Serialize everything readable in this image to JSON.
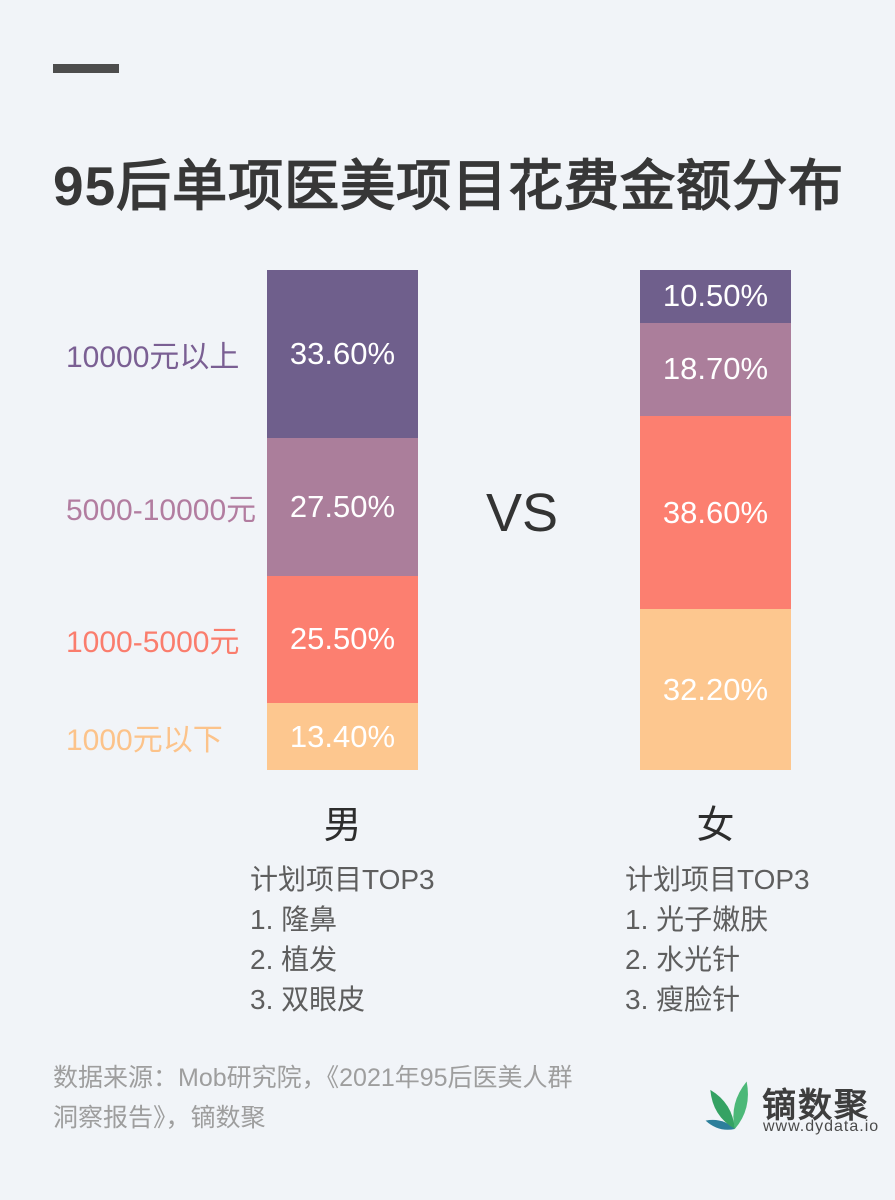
{
  "page": {
    "background": "#f1f4f8"
  },
  "header": {
    "title": "95后单项医美项目花费金额分布"
  },
  "chart_data": {
    "type": "bar",
    "subtype": "stacked-percentage-comparison",
    "unit": "%",
    "ylim": [
      0,
      100
    ],
    "categories": [
      "10000元以上",
      "5000-10000元",
      "1000-5000元",
      "1000元以下"
    ],
    "category_colors": [
      "#6f5f8c",
      "#ab7e9b",
      "#fc7f70",
      "#fdc78f"
    ],
    "category_label_colors": [
      "#7a5f93",
      "#b27da0",
      "#fa7d6d",
      "#fcc38a"
    ],
    "series": [
      {
        "name": "男",
        "values": [
          33.6,
          27.5,
          25.5,
          13.4
        ],
        "labels": [
          "33.60%",
          "27.50%",
          "25.50%",
          "13.40%"
        ]
      },
      {
        "name": "女",
        "values": [
          10.5,
          18.7,
          38.6,
          32.2
        ],
        "labels": [
          "10.50%",
          "18.70%",
          "38.60%",
          "32.20%"
        ]
      }
    ],
    "vs_label": "VS",
    "legend_position": "left-of-male-bar",
    "grid": false
  },
  "top3": {
    "male": {
      "heading": "计划项目TOP3",
      "items": [
        "1. 隆鼻",
        "2. 植发",
        "3. 双眼皮"
      ]
    },
    "female": {
      "heading": "计划项目TOP3",
      "items": [
        "1. 光子嫩肤",
        "2. 水光针",
        "3. 瘦脸针"
      ]
    }
  },
  "footer": {
    "source_line1": "数据来源：Mob研究院，《2021年95后医美人群",
    "source_line2": "洞察报告》，镝数聚",
    "logo": {
      "name": "镝数聚",
      "url": "www.dydata.io",
      "leaf_colors": [
        "#4cb878",
        "#2d7f9b",
        "#35a263"
      ]
    }
  }
}
